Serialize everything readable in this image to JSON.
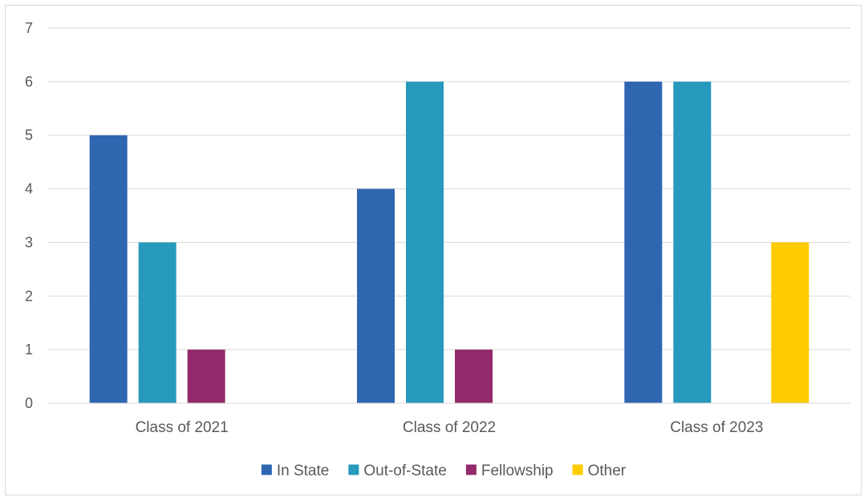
{
  "chart_data": {
    "type": "bar",
    "categories": [
      "Class of 2021",
      "Class of 2022",
      "Class of 2023"
    ],
    "series": [
      {
        "name": "In State",
        "color": "#2e66b0",
        "values": [
          5,
          4,
          6
        ]
      },
      {
        "name": "Out-of-State",
        "color": "#2699bc",
        "values": [
          3,
          6,
          6
        ]
      },
      {
        "name": "Fellowship",
        "color": "#922a6b",
        "values": [
          1,
          1,
          0
        ]
      },
      {
        "name": "Other",
        "color": "#ffcc00",
        "values": [
          0,
          0,
          3
        ]
      }
    ],
    "yticks": [
      "0",
      "1",
      "2",
      "3",
      "4",
      "5",
      "6",
      "7"
    ],
    "ylim": [
      0,
      7
    ],
    "grid": true,
    "legend_position": "bottom",
    "title": "",
    "xlabel": "",
    "ylabel": ""
  }
}
